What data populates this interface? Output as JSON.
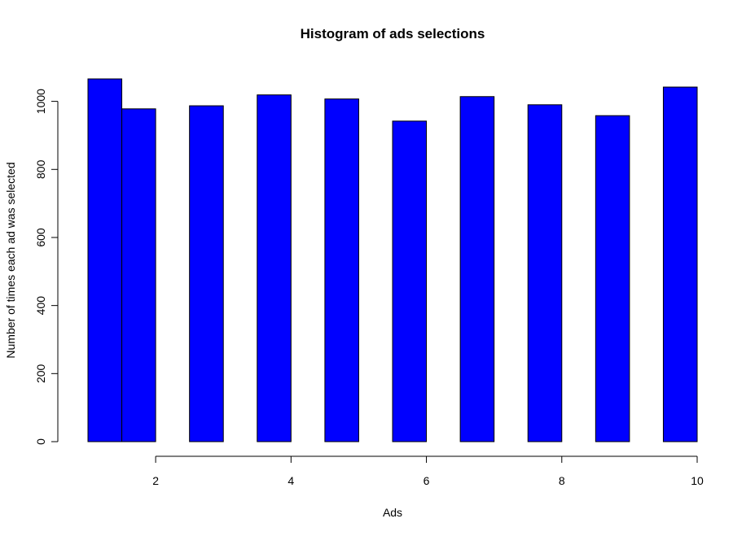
{
  "chart_data": {
    "type": "bar",
    "title": "Histogram of ads selections",
    "xlabel": "Ads",
    "ylabel": "Number of times each ad was selected",
    "bins": [
      {
        "from": 1.0,
        "to": 1.5,
        "value": 1066
      },
      {
        "from": 1.5,
        "to": 2.0,
        "value": 978
      },
      {
        "from": 2.5,
        "to": 3.0,
        "value": 987
      },
      {
        "from": 3.5,
        "to": 4.0,
        "value": 1019
      },
      {
        "from": 4.5,
        "to": 5.0,
        "value": 1007
      },
      {
        "from": 5.5,
        "to": 6.0,
        "value": 942
      },
      {
        "from": 6.5,
        "to": 7.0,
        "value": 1014
      },
      {
        "from": 7.5,
        "to": 8.0,
        "value": 990
      },
      {
        "from": 8.5,
        "to": 9.0,
        "value": 958
      },
      {
        "from": 9.5,
        "to": 10.0,
        "value": 1042
      }
    ],
    "x_ticks": [
      2,
      4,
      6,
      8,
      10
    ],
    "y_ticks": [
      0,
      200,
      400,
      600,
      800,
      1000
    ],
    "xlim": [
      1,
      10
    ],
    "ylim": [
      0,
      1066
    ],
    "grid": false,
    "legend": "none",
    "bar_color": "#0000ff",
    "border_color": "#000000"
  }
}
